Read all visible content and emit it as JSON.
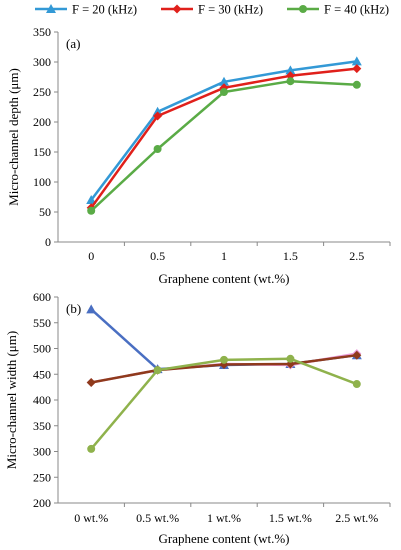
{
  "legend": [
    {
      "label": "F = 20 (kHz)",
      "color": "#3399d6",
      "marker": "triangle"
    },
    {
      "label": "F = 30 (kHz)",
      "color": "#e0201b",
      "marker": "diamond"
    },
    {
      "label": "F = 40 (kHz)",
      "color": "#5aab46",
      "marker": "circle"
    }
  ],
  "chart_data": [
    {
      "panel": "(a)",
      "type": "line",
      "categories": [
        "0",
        "0.5",
        "1",
        "1.5",
        "2.5"
      ],
      "xlabel": "Graphene content (wt.%)",
      "ylabel": "Micro-channel depth (μm)",
      "ylim": [
        0,
        350
      ],
      "yticks": [
        0,
        50,
        100,
        150,
        200,
        250,
        300,
        350
      ],
      "grid": false,
      "series": [
        {
          "name": "F = 20 (kHz)",
          "color": "#3399d6",
          "marker": "triangle",
          "values": [
            70,
            217,
            267,
            286,
            301
          ]
        },
        {
          "name": "F = 30 (kHz)",
          "color": "#e0201b",
          "marker": "diamond",
          "values": [
            57,
            210,
            257,
            277,
            289
          ]
        },
        {
          "name": "F = 40 (kHz)",
          "color": "#5aab46",
          "marker": "circle",
          "values": [
            52,
            155,
            250,
            268,
            262
          ]
        }
      ]
    },
    {
      "panel": "(b)",
      "type": "line",
      "categories": [
        "0 wt.%",
        "0.5 wt.%",
        "1 wt.%",
        "1.5 wt.%",
        "2.5 wt.%"
      ],
      "xlabel": "Graphene content (wt.%)",
      "ylabel": "Micro-channel  width (μm)",
      "ylim": [
        200,
        600
      ],
      "yticks": [
        200,
        250,
        300,
        350,
        400,
        450,
        500,
        550,
        600
      ],
      "grid": false,
      "series": [
        {
          "color": "#4a6fc2",
          "marker": "triangle",
          "values": [
            576,
            460,
            468,
            470,
            487
          ]
        },
        {
          "color": "#e99ad8",
          "marker": "diamond",
          "values": [
            434,
            458,
            470,
            468,
            490
          ]
        },
        {
          "color": "#8f3a1c",
          "marker": "diamond",
          "values": [
            434,
            458,
            469,
            470,
            487
          ]
        },
        {
          "color": "#8fb24c",
          "marker": "circle",
          "values": [
            305,
            458,
            478,
            480,
            431
          ]
        }
      ]
    }
  ]
}
